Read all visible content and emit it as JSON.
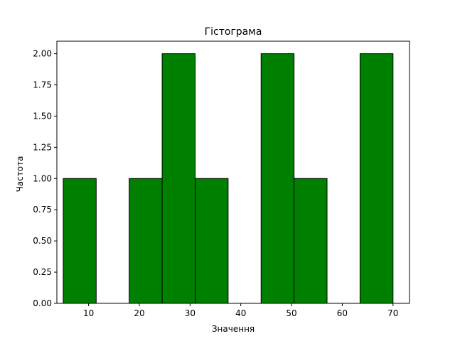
{
  "chart_data": {
    "type": "bar",
    "title": "Гістограма",
    "xlabel": "Значення",
    "ylabel": "Частота",
    "bar_color": "#008000",
    "edge_color": "#000000",
    "xlim": [
      3.75,
      73.25
    ],
    "ylim": [
      0,
      2.1
    ],
    "x_ticks": [
      10,
      20,
      30,
      40,
      50,
      60,
      70
    ],
    "y_ticks": [
      0.0,
      0.25,
      0.5,
      0.75,
      1.0,
      1.25,
      1.5,
      1.75,
      2.0
    ],
    "y_tick_labels": [
      "0.00",
      "0.25",
      "0.50",
      "0.75",
      "1.00",
      "1.25",
      "1.50",
      "1.75",
      "2.00"
    ],
    "x_tick_labels": [
      "10",
      "20",
      "30",
      "40",
      "50",
      "60",
      "70"
    ],
    "bins": [
      5.0,
      11.5,
      18.0,
      24.5,
      31.0,
      37.5,
      44.0,
      50.5,
      57.0,
      63.5,
      70.0
    ],
    "counts": [
      1,
      0,
      1,
      2,
      1,
      0,
      2,
      1,
      0,
      2
    ],
    "grid": false
  }
}
